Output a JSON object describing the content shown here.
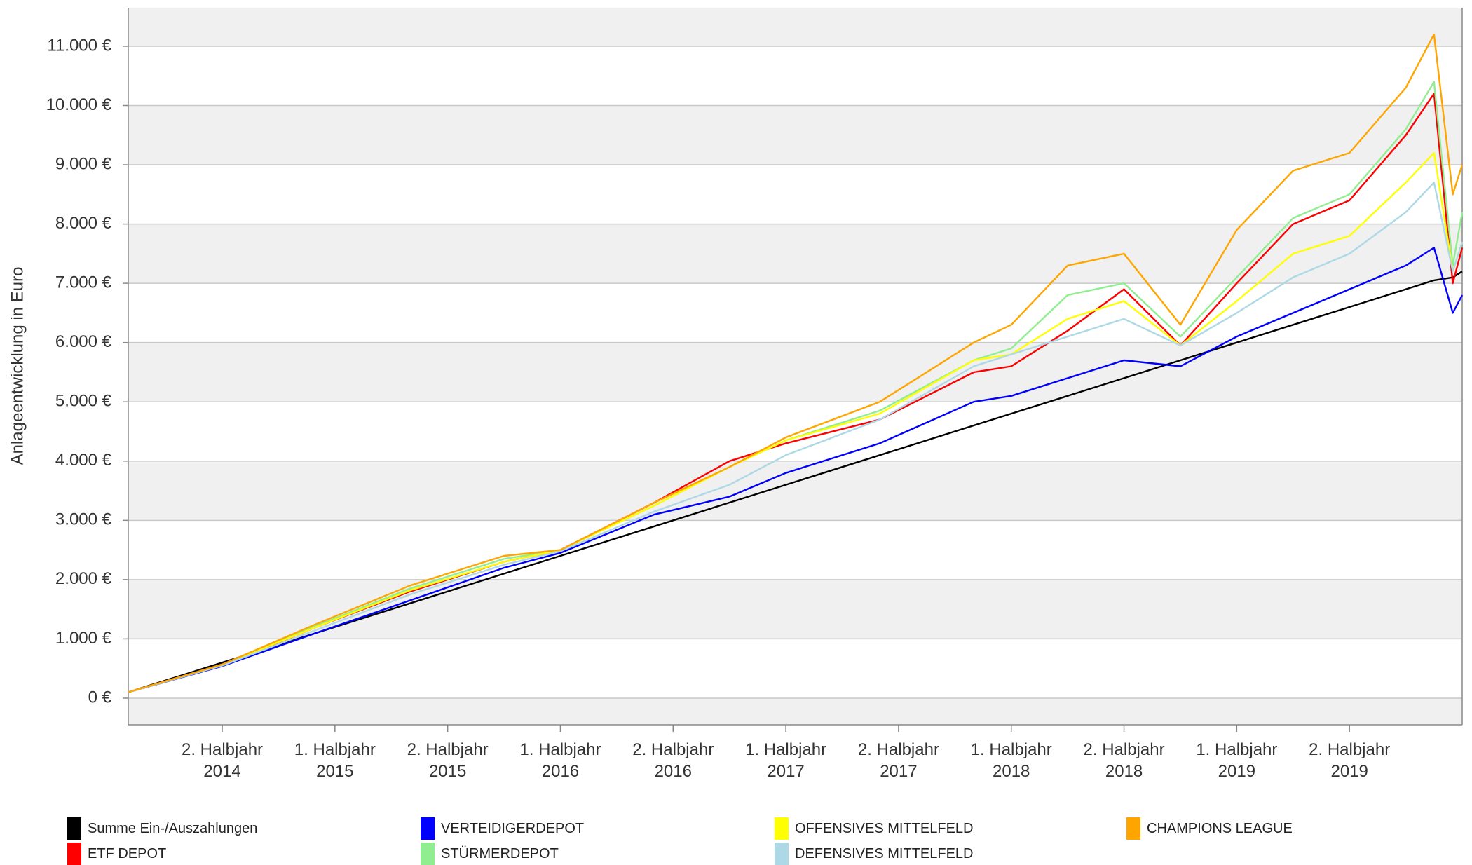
{
  "chart_data": {
    "type": "line",
    "y_label": "Anlageentwicklung  in Euro",
    "x": [
      0,
      5,
      10,
      15,
      20,
      23,
      28,
      32,
      35,
      40,
      45,
      47,
      50,
      53,
      56,
      59,
      62,
      65,
      68,
      69.5,
      70.5,
      71
    ],
    "xlim": [
      0,
      71
    ],
    "xticks": [
      {
        "value": 5,
        "label": "2. Halbjahr\n2014"
      },
      {
        "value": 11,
        "label": "1. Halbjahr\n2015"
      },
      {
        "value": 17,
        "label": "2. Halbjahr\n2015"
      },
      {
        "value": 23,
        "label": "1. Halbjahr\n2016"
      },
      {
        "value": 29,
        "label": "2. Halbjahr\n2016"
      },
      {
        "value": 35,
        "label": "1. Halbjahr\n2017"
      },
      {
        "value": 41,
        "label": "2. Halbjahr\n2017"
      },
      {
        "value": 47,
        "label": "1. Halbjahr\n2018"
      },
      {
        "value": 53,
        "label": "2. Halbjahr\n2018"
      },
      {
        "value": 59,
        "label": "1. Halbjahr\n2019"
      },
      {
        "value": 65,
        "label": "2. Halbjahr\n2019"
      }
    ],
    "ylim": [
      -450,
      11650
    ],
    "yticks": [
      {
        "value": 0,
        "label": "0 €"
      },
      {
        "value": 1000,
        "label": "1.000 €"
      },
      {
        "value": 2000,
        "label": "2.000 €"
      },
      {
        "value": 3000,
        "label": "3.000 €"
      },
      {
        "value": 4000,
        "label": "4.000 €"
      },
      {
        "value": 5000,
        "label": "5.000 €"
      },
      {
        "value": 6000,
        "label": "6.000 €"
      },
      {
        "value": 7000,
        "label": "7.000 €"
      },
      {
        "value": 8000,
        "label": "8.000 €"
      },
      {
        "value": 9000,
        "label": "9.000 €"
      },
      {
        "value": 10000,
        "label": "10.000 €"
      },
      {
        "value": 11000,
        "label": "11.000 €"
      }
    ],
    "grid": true,
    "series": [
      {
        "name": "Summe Ein-/Auszahlungen",
        "color": "#000000",
        "values": [
          100,
          600,
          1100,
          1600,
          2100,
          2400,
          2900,
          3300,
          3600,
          4100,
          4600,
          4800,
          5100,
          5400,
          5700,
          6000,
          6300,
          6600,
          6900,
          7050,
          7100,
          7200
        ]
      },
      {
        "name": "ETF DEPOT",
        "color": "#ff0000",
        "values": [
          100,
          550,
          1200,
          1800,
          2300,
          2500,
          3300,
          4000,
          4300,
          4700,
          5500,
          5600,
          6200,
          6900,
          5950,
          7000,
          8000,
          8400,
          9500,
          10200,
          7000,
          7600
        ]
      },
      {
        "name": "VERTEIDIGERDEPOT",
        "color": "#0000ff",
        "values": [
          100,
          540,
          1100,
          1650,
          2200,
          2450,
          3100,
          3400,
          3800,
          4300,
          5000,
          5100,
          5400,
          5700,
          5600,
          6100,
          6500,
          6900,
          7300,
          7600,
          6500,
          6800
        ]
      },
      {
        "name": "STÜRMERDEPOT",
        "color": "#90ee90",
        "values": [
          100,
          560,
          1220,
          1850,
          2350,
          2500,
          3250,
          3900,
          4350,
          4850,
          5700,
          5900,
          6800,
          7000,
          6100,
          7100,
          8100,
          8500,
          9600,
          10400,
          7300,
          8200
        ]
      },
      {
        "name": "OFFENSIVES MITTELFELD",
        "color": "#ffff00",
        "values": [
          100,
          560,
          1200,
          1820,
          2300,
          2500,
          3250,
          3900,
          4350,
          4800,
          5700,
          5800,
          6400,
          6700,
          5950,
          6700,
          7500,
          7800,
          8700,
          9200,
          7200,
          7700
        ]
      },
      {
        "name": "DEFENSIVES MITTELFELD",
        "color": "#add8e6",
        "values": [
          100,
          550,
          1150,
          1750,
          2250,
          2480,
          3150,
          3600,
          4100,
          4700,
          5600,
          5800,
          6100,
          6400,
          5950,
          6500,
          7100,
          7500,
          8200,
          8700,
          7200,
          7700
        ]
      },
      {
        "name": "CHAMPIONS LEAGUE",
        "color": "#ffa500",
        "values": [
          100,
          570,
          1250,
          1900,
          2400,
          2500,
          3300,
          3900,
          4400,
          5000,
          6000,
          6300,
          7300,
          7500,
          6300,
          7900,
          8900,
          9200,
          10300,
          11200,
          8500,
          9000
        ]
      }
    ]
  }
}
